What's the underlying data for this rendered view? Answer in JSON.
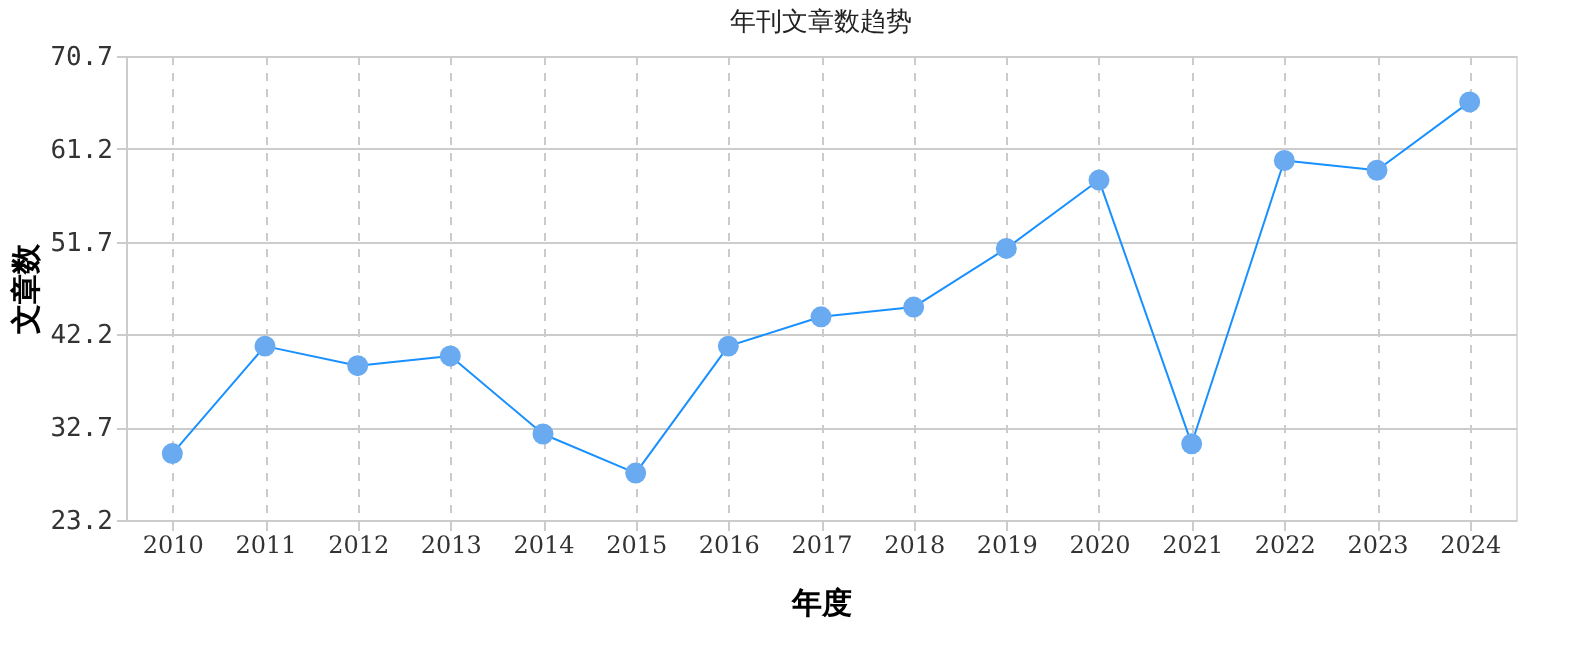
{
  "chart_data": {
    "type": "line",
    "title": "年刊文章数趋势",
    "xlabel": "年度",
    "ylabel": "文章数",
    "categories": [
      "2010",
      "2011",
      "2012",
      "2013",
      "2014",
      "2015",
      "2016",
      "2017",
      "2018",
      "2019",
      "2020",
      "2021",
      "2022",
      "2023",
      "2024"
    ],
    "series": [
      {
        "color": "#1890ff",
        "values": [
          30,
          41,
          39,
          40,
          32,
          28,
          41,
          44,
          45,
          51,
          58,
          31,
          60,
          59,
          66
        ]
      }
    ],
    "ylim": [
      23.2,
      70.7
    ],
    "yticks": [
      23.2,
      32.7,
      42.2,
      51.7,
      61.2,
      70.7
    ],
    "grid": true,
    "marker": "circle",
    "line_style": "solid"
  }
}
